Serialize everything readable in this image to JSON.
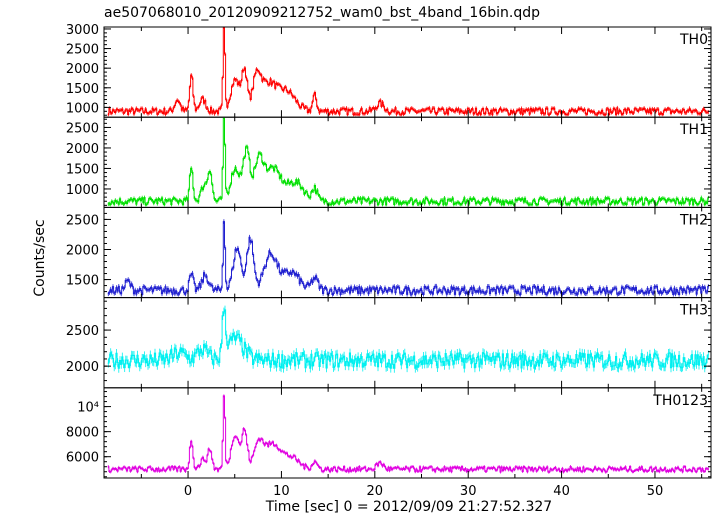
{
  "chart_data": {
    "type": "line",
    "title": "ae507068010_20120909212752_wam0_bst_4band_16bin.qdp",
    "xlabel": "Time [sec] 0 = 2012/09/09 21:27:52.327",
    "ylabel": "Counts/sec",
    "xlim": [
      -9,
      56
    ],
    "x_ticks": [
      "0",
      "10",
      "20",
      "30",
      "40",
      "50"
    ],
    "x_tick_values": [
      0,
      10,
      20,
      30,
      40,
      50
    ],
    "grid": false,
    "panels": [
      {
        "name": "TH0",
        "color": "#ff0000",
        "ylim": [
          750,
          3050
        ],
        "y_ticks": [
          "1000",
          "1500",
          "2000",
          "2500",
          "3000"
        ],
        "y_tick_values": [
          1000,
          1500,
          2000,
          2500,
          3000
        ],
        "base": 900,
        "features": [
          [
            -1.2,
            300,
            0.4
          ],
          [
            0.3,
            900,
            0.25
          ],
          [
            1.5,
            300,
            0.5
          ],
          [
            3.8,
            2100,
            0.15
          ],
          [
            5.0,
            800,
            0.7
          ],
          [
            6.0,
            1000,
            0.4
          ],
          [
            7.3,
            800,
            0.6
          ],
          [
            8.5,
            700,
            1.2
          ],
          [
            10.5,
            500,
            1.3
          ],
          [
            13.5,
            400,
            0.3
          ],
          [
            20.5,
            200,
            0.6
          ]
        ],
        "noise": 90
      },
      {
        "name": "TH1",
        "color": "#00e000",
        "ylim": [
          550,
          2750
        ],
        "y_ticks": [
          "1000",
          "1500",
          "2000",
          "2500"
        ],
        "y_tick_values": [
          1000,
          1500,
          2000,
          2500
        ],
        "base": 700,
        "features": [
          [
            0.3,
            800,
            0.25
          ],
          [
            1.7,
            400,
            0.5
          ],
          [
            2.3,
            700,
            0.3
          ],
          [
            3.8,
            2000,
            0.15
          ],
          [
            5.0,
            800,
            0.7
          ],
          [
            6.2,
            1200,
            0.5
          ],
          [
            7.5,
            900,
            0.7
          ],
          [
            9.0,
            800,
            1.3
          ],
          [
            11.5,
            450,
            1.2
          ],
          [
            13.5,
            300,
            0.4
          ]
        ],
        "noise": 90
      },
      {
        "name": "TH2",
        "color": "#2020d0",
        "ylim": [
          1200,
          2700
        ],
        "y_ticks": [
          "1500",
          "2000",
          "2500"
        ],
        "y_tick_values": [
          1500,
          2000,
          2500
        ],
        "base": 1320,
        "features": [
          [
            -6.5,
            150,
            0.4
          ],
          [
            0.3,
            250,
            0.3
          ],
          [
            1.8,
            250,
            0.5
          ],
          [
            3.8,
            1200,
            0.15
          ],
          [
            5.2,
            700,
            0.6
          ],
          [
            6.6,
            850,
            0.5
          ],
          [
            8.8,
            600,
            1.0
          ],
          [
            11.0,
            300,
            1.2
          ],
          [
            13.5,
            200,
            0.5
          ]
        ],
        "noise": 70
      },
      {
        "name": "TH3",
        "color": "#00f0f0",
        "ylim": [
          1700,
          2950
        ],
        "y_ticks": [
          "2000",
          "2500"
        ],
        "y_tick_values": [
          2000,
          2500
        ],
        "base": 2080,
        "features": [
          [
            3.8,
            650,
            0.25
          ],
          [
            5.0,
            300,
            1.2
          ],
          [
            1.5,
            150,
            0.8
          ],
          [
            -1.0,
            100,
            1.0
          ]
        ],
        "noise": 110
      },
      {
        "name": "TH0123",
        "color": "#e000e0",
        "ylim": [
          4300,
          11500
        ],
        "y_ticks": [
          "6000",
          "8000",
          "10⁴"
        ],
        "y_tick_values": [
          6000,
          8000,
          10000
        ],
        "base": 5000,
        "features": [
          [
            0.3,
            2300,
            0.25
          ],
          [
            1.6,
            800,
            0.5
          ],
          [
            2.3,
            1500,
            0.3
          ],
          [
            3.8,
            6000,
            0.15
          ],
          [
            5.0,
            2800,
            0.6
          ],
          [
            6.0,
            3000,
            0.4
          ],
          [
            7.5,
            2000,
            0.7
          ],
          [
            9.0,
            2000,
            1.2
          ],
          [
            11.0,
            900,
            1.2
          ],
          [
            13.5,
            600,
            0.4
          ],
          [
            20.5,
            500,
            0.5
          ]
        ],
        "noise": 220
      }
    ]
  }
}
